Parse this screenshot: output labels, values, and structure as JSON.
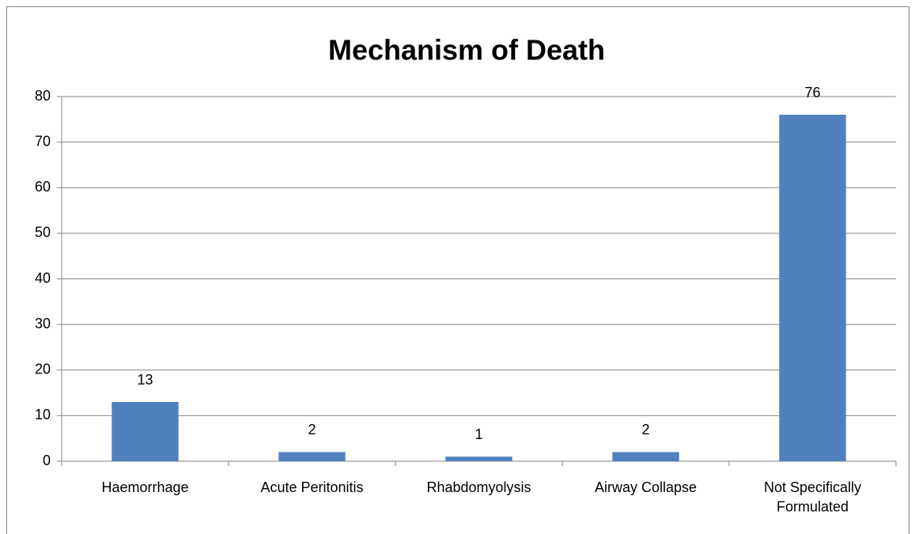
{
  "chart_data": {
    "type": "bar",
    "title": "Mechanism of Death",
    "categories": [
      "Haemorrhage",
      "Acute Peritonitis",
      "Rhabdomyolysis",
      "Airway Collapse",
      "Not Specifically Formulated"
    ],
    "values": [
      13,
      2,
      1,
      2,
      76
    ],
    "color": "#4f81bd",
    "ylim": [
      0,
      80
    ],
    "yticks": [
      0,
      10,
      20,
      30,
      40,
      50,
      60,
      70,
      80
    ],
    "grid": true
  }
}
